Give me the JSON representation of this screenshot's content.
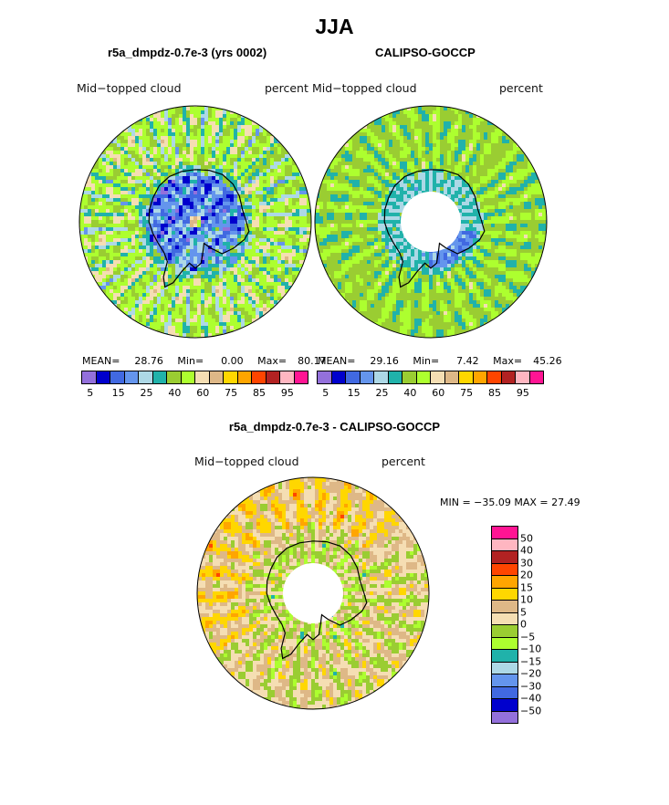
{
  "title": "JJA",
  "panels": [
    {
      "title": "r5a_dmpdz-0.7e-3 (yrs 0002)",
      "variable": "Mid−topped cloud",
      "units": "percent",
      "stats": {
        "mean_label": "MEAN=",
        "mean": "28.76",
        "min_label": "Min=",
        "min": "0.00",
        "max_label": "Max=",
        "max": "80.17"
      }
    },
    {
      "title": "CALIPSO-GOCCP",
      "variable": "Mid−topped cloud",
      "units": "percent",
      "stats": {
        "mean_label": "MEAN=",
        "mean": "29.16",
        "min_label": "Min=",
        "min": "7.42",
        "max_label": "Max=",
        "max": "45.26"
      }
    }
  ],
  "diff_panel": {
    "title": "r5a_dmpdz-0.7e-3 - CALIPSO-GOCCP",
    "variable": "Mid−topped cloud",
    "units": "percent",
    "minmax_text": "MIN = −35.09 MAX =   27.49"
  },
  "colorbar_abs": {
    "colors": [
      "#9370DB",
      "#0000CD",
      "#4169E1",
      "#6495ED",
      "#ADD8E6",
      "#20B2AA",
      "#9ACD32",
      "#ADFF2F",
      "#F5DEB3",
      "#DEB887",
      "#FFD700",
      "#FFA500",
      "#FF4500",
      "#B22222",
      "#FFB6C1",
      "#FF1493"
    ],
    "tick_labels": [
      "5",
      "15",
      "25",
      "40",
      "60",
      "75",
      "85",
      "95"
    ]
  },
  "colorbar_diff": {
    "colors": [
      "#FF1493",
      "#FFB6C1",
      "#B22222",
      "#FF4500",
      "#FFA500",
      "#FFD700",
      "#DEB887",
      "#F5DEB3",
      "#9ACD32",
      "#ADFF2F",
      "#20B2AA",
      "#ADD8E6",
      "#6495ED",
      "#4169E1",
      "#0000CD",
      "#9370DB"
    ],
    "tick_labels": [
      "50",
      "40",
      "30",
      "20",
      "15",
      "10",
      "5",
      "0",
      "−5",
      "−10",
      "−15",
      "−20",
      "−30",
      "−40",
      "−50"
    ]
  },
  "chart_data": [
    {
      "type": "heatmap",
      "projection": "south polar stereographic",
      "title": "r5a_dmpdz-0.7e-3 (yrs 0002)",
      "variable": "Mid-topped cloud",
      "units": "percent",
      "levels": [
        5,
        10,
        15,
        20,
        25,
        30,
        40,
        50,
        60,
        70,
        75,
        80,
        85,
        90,
        95
      ],
      "mean": 28.76,
      "min": 0.0,
      "max": 80.17
    },
    {
      "type": "heatmap",
      "projection": "south polar stereographic",
      "title": "CALIPSO-GOCCP",
      "variable": "Mid-topped cloud",
      "units": "percent",
      "levels": [
        5,
        10,
        15,
        20,
        25,
        30,
        40,
        50,
        60,
        70,
        75,
        80,
        85,
        90,
        95
      ],
      "mean": 29.16,
      "min": 7.42,
      "max": 45.26
    },
    {
      "type": "heatmap",
      "projection": "south polar stereographic",
      "title": "r5a_dmpdz-0.7e-3 - CALIPSO-GOCCP",
      "variable": "Mid-topped cloud",
      "units": "percent",
      "levels": [
        -50,
        -40,
        -30,
        -20,
        -15,
        -10,
        -5,
        0,
        5,
        10,
        15,
        20,
        30,
        40,
        50
      ],
      "min": -35.09,
      "max": 27.49
    }
  ]
}
